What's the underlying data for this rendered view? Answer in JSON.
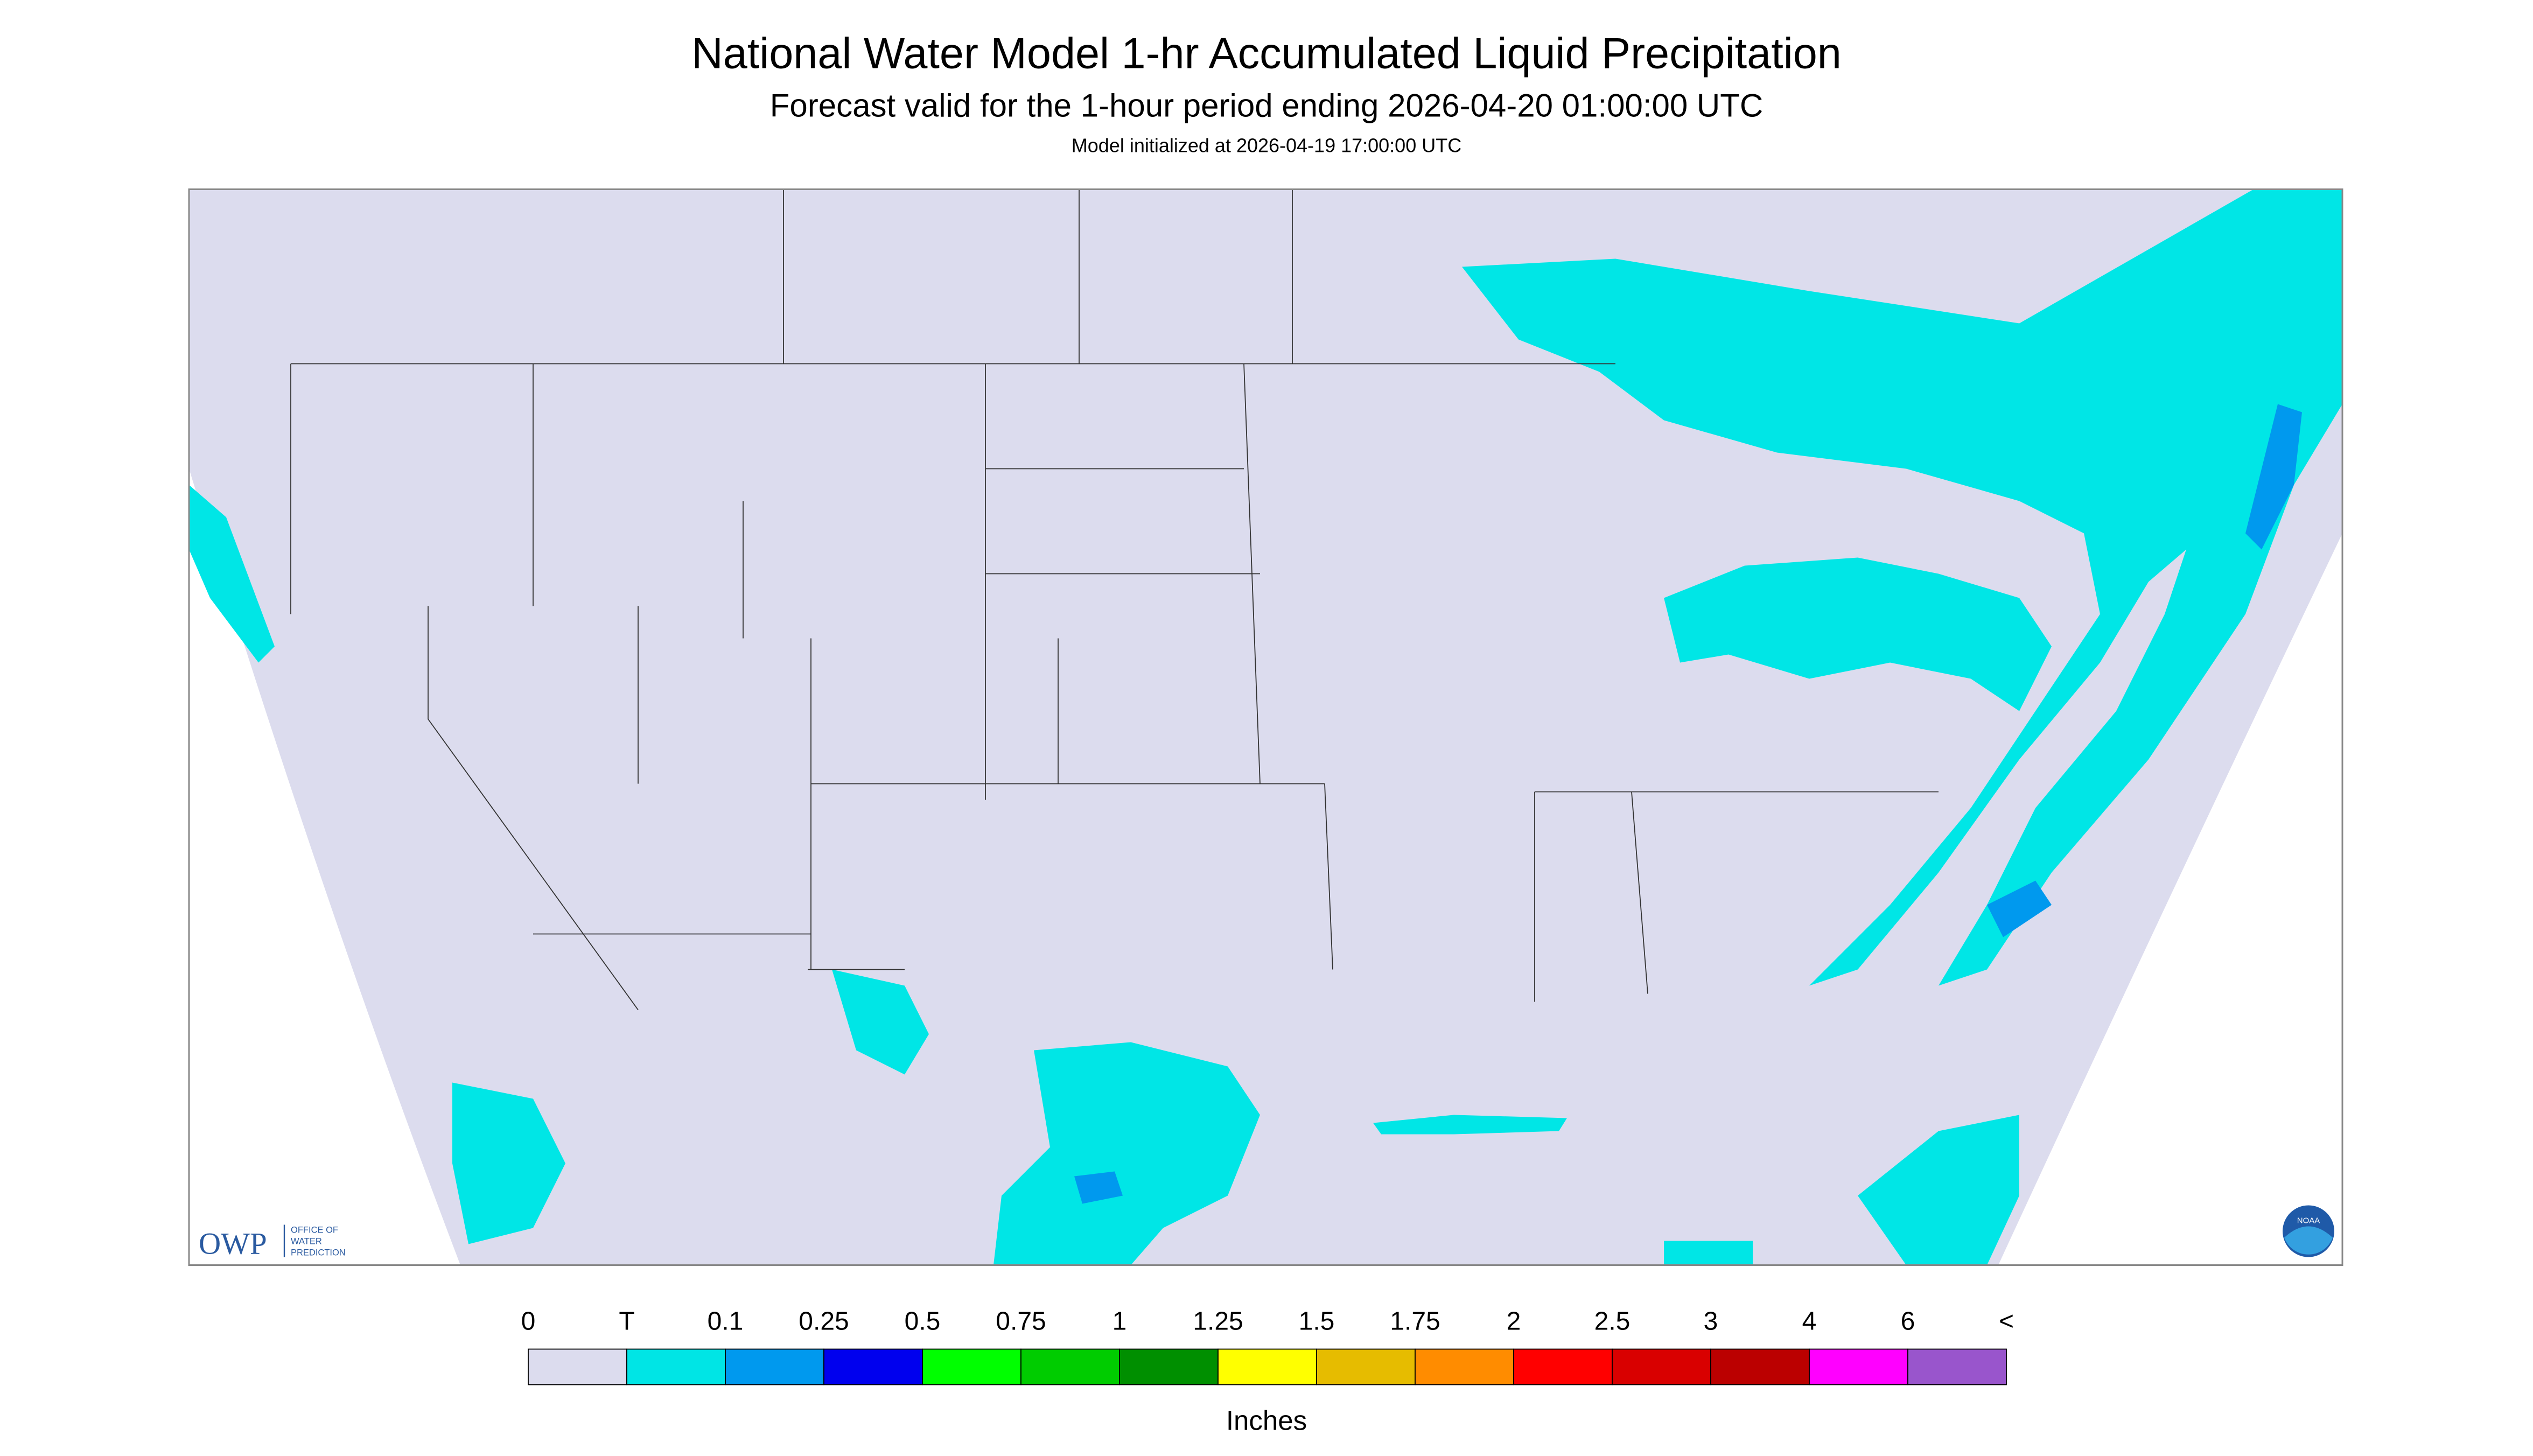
{
  "header": {
    "title": "National Water Model 1-hr Accumulated Liquid Precipitation",
    "subtitle": "Forecast valid for the 1-hour period ending 2026-04-20 01:00:00 UTC",
    "note": "Model initialized at 2026-04-19 17:00:00 UTC"
  },
  "logos": {
    "owp": "OWP",
    "owp_text": [
      "OFFICE OF",
      "WATER",
      "PREDICTION"
    ],
    "noaa": "NOAA"
  },
  "legend": {
    "labels": [
      "0",
      "T",
      "0.1",
      "0.25",
      "0.5",
      "0.75",
      "1",
      "1.25",
      "1.5",
      "1.75",
      "2",
      "2.5",
      "3",
      "4",
      "6",
      "<"
    ],
    "colors": [
      "#dcdcee",
      "#00e5e5",
      "#0099ee",
      "#0000ee",
      "#00ff00",
      "#00cc00",
      "#008f00",
      "#ffff00",
      "#e6bc00",
      "#ff8c00",
      "#ff0000",
      "#d90000",
      "#bb0000",
      "#ff00ff",
      "#9955cc"
    ],
    "unit": "Inches"
  }
}
